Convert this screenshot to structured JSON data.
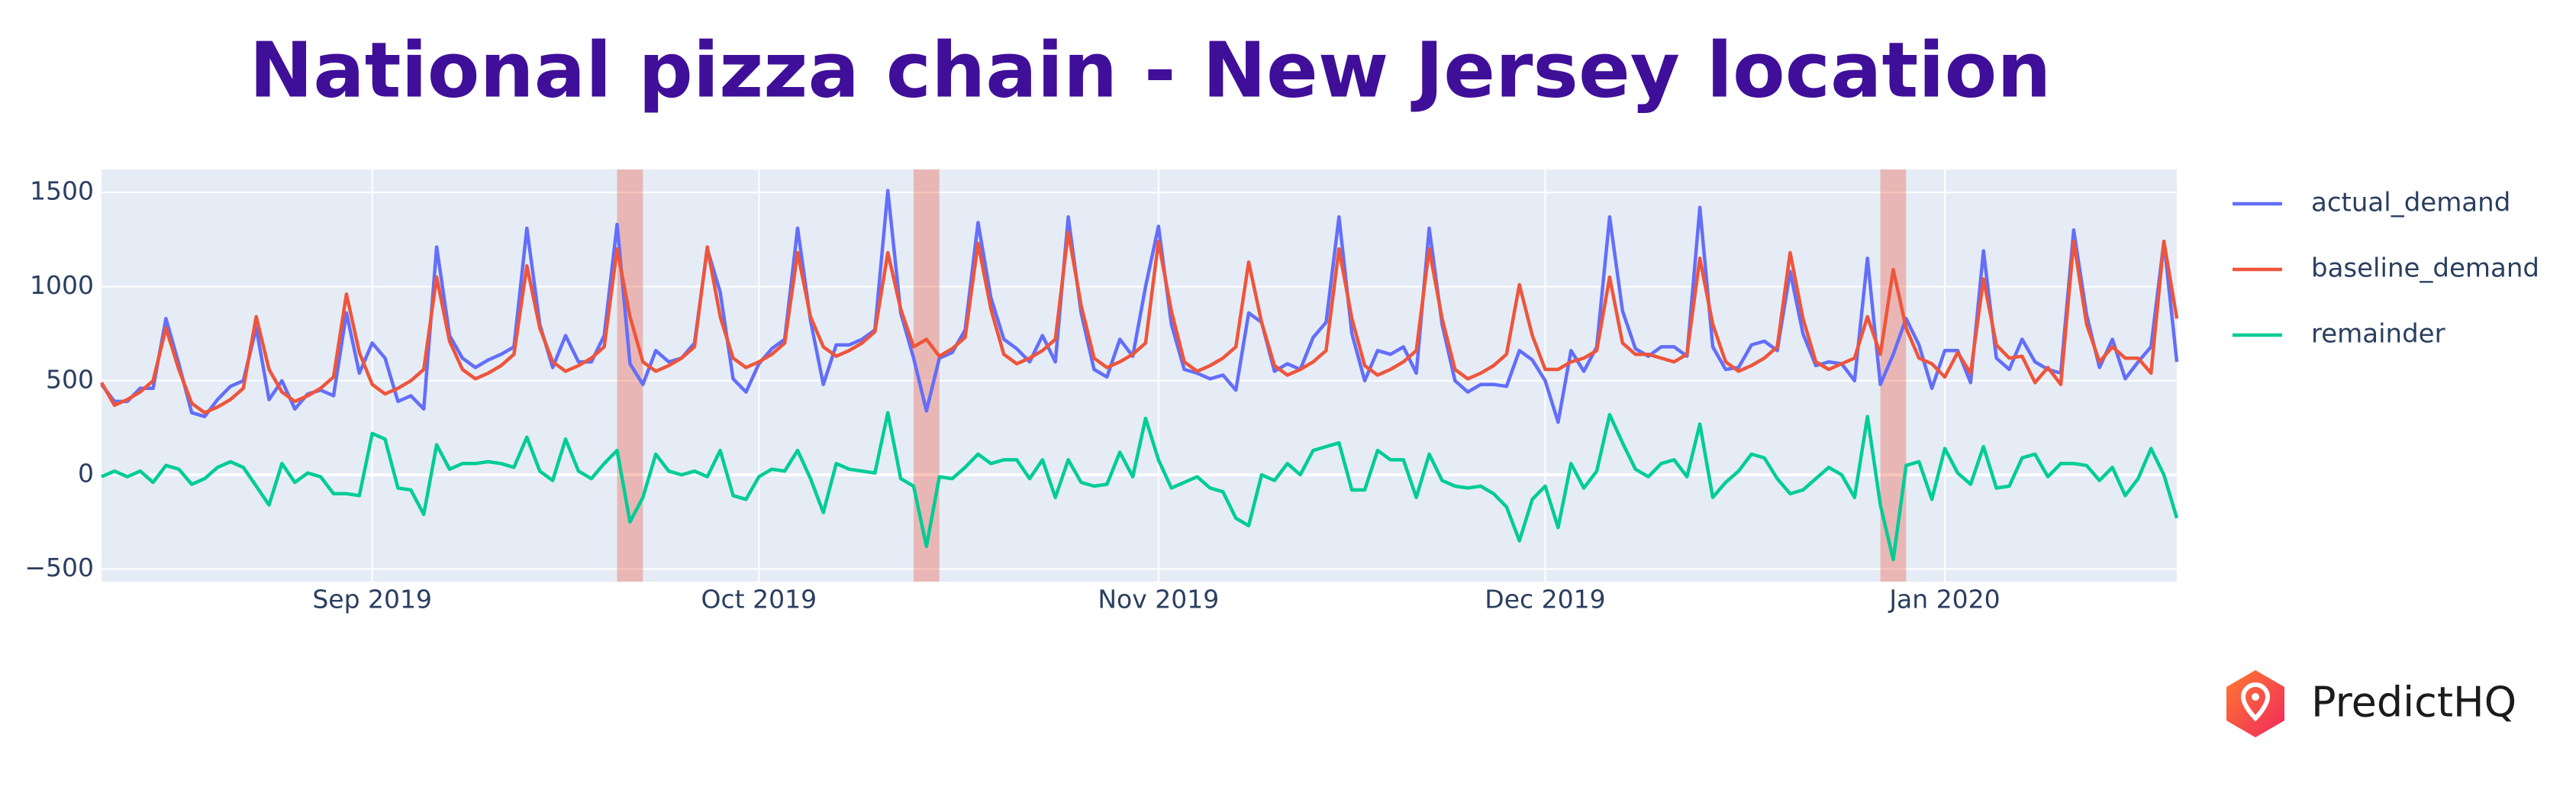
{
  "chart_data": {
    "type": "line",
    "title": "National pizza chain - New Jersey location",
    "logo": "PredictHQ",
    "x": [
      "2019-08-11",
      "2019-08-12",
      "2019-08-13",
      "2019-08-14",
      "2019-08-15",
      "2019-08-16",
      "2019-08-17",
      "2019-08-18",
      "2019-08-19",
      "2019-08-20",
      "2019-08-21",
      "2019-08-22",
      "2019-08-23",
      "2019-08-24",
      "2019-08-25",
      "2019-08-26",
      "2019-08-27",
      "2019-08-28",
      "2019-08-29",
      "2019-08-30",
      "2019-08-31",
      "2019-09-01",
      "2019-09-02",
      "2019-09-03",
      "2019-09-04",
      "2019-09-05",
      "2019-09-06",
      "2019-09-07",
      "2019-09-08",
      "2019-09-09",
      "2019-09-10",
      "2019-09-11",
      "2019-09-12",
      "2019-09-13",
      "2019-09-14",
      "2019-09-15",
      "2019-09-16",
      "2019-09-17",
      "2019-09-18",
      "2019-09-19",
      "2019-09-20",
      "2019-09-21",
      "2019-09-22",
      "2019-09-23",
      "2019-09-24",
      "2019-09-25",
      "2019-09-26",
      "2019-09-27",
      "2019-09-28",
      "2019-09-29",
      "2019-09-30",
      "2019-10-01",
      "2019-10-02",
      "2019-10-03",
      "2019-10-04",
      "2019-10-05",
      "2019-10-06",
      "2019-10-07",
      "2019-10-08",
      "2019-10-09",
      "2019-10-10",
      "2019-10-11",
      "2019-10-12",
      "2019-10-13",
      "2019-10-14",
      "2019-10-15",
      "2019-10-16",
      "2019-10-17",
      "2019-10-18",
      "2019-10-19",
      "2019-10-20",
      "2019-10-21",
      "2019-10-22",
      "2019-10-23",
      "2019-10-24",
      "2019-10-25",
      "2019-10-26",
      "2019-10-27",
      "2019-10-28",
      "2019-10-29",
      "2019-10-30",
      "2019-10-31",
      "2019-11-01",
      "2019-11-02",
      "2019-11-03",
      "2019-11-04",
      "2019-11-05",
      "2019-11-06",
      "2019-11-07",
      "2019-11-08",
      "2019-11-09",
      "2019-11-10",
      "2019-11-11",
      "2019-11-12",
      "2019-11-13",
      "2019-11-14",
      "2019-11-15",
      "2019-11-16",
      "2019-11-17",
      "2019-11-18",
      "2019-11-19",
      "2019-11-20",
      "2019-11-21",
      "2019-11-22",
      "2019-11-23",
      "2019-11-24",
      "2019-11-25",
      "2019-11-26",
      "2019-11-27",
      "2019-11-28",
      "2019-11-29",
      "2019-11-30",
      "2019-12-01",
      "2019-12-02",
      "2019-12-03",
      "2019-12-04",
      "2019-12-05",
      "2019-12-06",
      "2019-12-07",
      "2019-12-08",
      "2019-12-09",
      "2019-12-10",
      "2019-12-11",
      "2019-12-12",
      "2019-12-13",
      "2019-12-14",
      "2019-12-15",
      "2019-12-16",
      "2019-12-17",
      "2019-12-18",
      "2019-12-19",
      "2019-12-20",
      "2019-12-21",
      "2019-12-22",
      "2019-12-23",
      "2019-12-24",
      "2019-12-25",
      "2019-12-26",
      "2019-12-27",
      "2019-12-28",
      "2019-12-29",
      "2019-12-30",
      "2019-12-31",
      "2020-01-01",
      "2020-01-02",
      "2020-01-03",
      "2020-01-04",
      "2020-01-05",
      "2020-01-06",
      "2020-01-07",
      "2020-01-08",
      "2020-01-09",
      "2020-01-10",
      "2020-01-11",
      "2020-01-12",
      "2020-01-13",
      "2020-01-14",
      "2020-01-15",
      "2020-01-16",
      "2020-01-17",
      "2020-01-18",
      "2020-01-19"
    ],
    "series": [
      {
        "name": "actual_demand",
        "color": "#636efa",
        "values": [
          480,
          390,
          390,
          460,
          460,
          830,
          590,
          330,
          310,
          400,
          470,
          500,
          780,
          400,
          500,
          350,
          430,
          450,
          420,
          860,
          540,
          700,
          620,
          390,
          420,
          350,
          1210,
          740,
          620,
          570,
          610,
          640,
          680,
          1310,
          800,
          570,
          740,
          600,
          600,
          740,
          1330,
          590,
          480,
          660,
          600,
          620,
          700,
          1200,
          970,
          510,
          440,
          590,
          670,
          720,
          1310,
          820,
          480,
          690,
          690,
          720,
          770,
          1510,
          860,
          620,
          340,
          620,
          650,
          770,
          1340,
          940,
          720,
          670,
          600,
          740,
          600,
          1370,
          860,
          560,
          520,
          720,
          630,
          1000,
          1320,
          800,
          560,
          540,
          510,
          530,
          450,
          860,
          810,
          550,
          590,
          560,
          730,
          810,
          1370,
          750,
          500,
          660,
          640,
          680,
          540,
          1310,
          800,
          500,
          440,
          480,
          480,
          470,
          660,
          610,
          500,
          280,
          660,
          550,
          680,
          1370,
          870,
          670,
          630,
          680,
          680,
          630,
          1420,
          680,
          560,
          570,
          690,
          710,
          660,
          1080,
          750,
          580,
          600,
          590,
          500,
          1150,
          480,
          640,
          830,
          690,
          460,
          660,
          660,
          490,
          1190,
          620,
          560,
          720,
          600,
          560,
          540,
          1300,
          850,
          570,
          720,
          510,
          600,
          680,
          1240,
          600
        ]
      },
      {
        "name": "baseline_demand",
        "color": "#EF553B",
        "values": [
          490,
          370,
          400,
          440,
          500,
          780,
          560,
          380,
          330,
          360,
          400,
          460,
          840,
          560,
          440,
          390,
          420,
          460,
          520,
          960,
          650,
          480,
          430,
          460,
          500,
          560,
          1050,
          710,
          560,
          510,
          540,
          580,
          640,
          1110,
          780,
          600,
          550,
          580,
          620,
          680,
          1200,
          840,
          600,
          550,
          580,
          620,
          680,
          1210,
          840,
          620,
          570,
          600,
          640,
          700,
          1180,
          840,
          680,
          630,
          660,
          700,
          760,
          1180,
          880,
          680,
          720,
          630,
          670,
          730,
          1230,
          880,
          640,
          590,
          620,
          660,
          720,
          1290,
          900,
          620,
          570,
          600,
          640,
          700,
          1240,
          870,
          600,
          550,
          580,
          620,
          680,
          1130,
          810,
          580,
          530,
          560,
          600,
          660,
          1200,
          830,
          580,
          530,
          560,
          600,
          660,
          1200,
          830,
          560,
          510,
          540,
          580,
          640,
          1010,
          740,
          560,
          560,
          600,
          620,
          660,
          1050,
          700,
          640,
          640,
          620,
          600,
          640,
          1150,
          800,
          600,
          550,
          580,
          620,
          680,
          1180,
          830,
          600,
          560,
          590,
          620,
          840,
          640,
          1090,
          780,
          620,
          590,
          520,
          650,
          540,
          1040,
          690,
          620,
          630,
          490,
          570,
          480,
          1240,
          800,
          600,
          680,
          620,
          620,
          540,
          1240,
          830
        ]
      },
      {
        "name": "remainder",
        "color": "#00cc96",
        "values": [
          -10,
          20,
          -10,
          20,
          -40,
          50,
          30,
          -50,
          -20,
          40,
          70,
          40,
          -60,
          -160,
          60,
          -40,
          10,
          -10,
          -100,
          -100,
          -110,
          220,
          190,
          -70,
          -80,
          -210,
          160,
          30,
          60,
          60,
          70,
          60,
          40,
          200,
          20,
          -30,
          190,
          20,
          -20,
          60,
          130,
          -250,
          -120,
          110,
          20,
          0,
          20,
          -10,
          130,
          -110,
          -130,
          -10,
          30,
          20,
          130,
          -20,
          -200,
          60,
          30,
          20,
          10,
          330,
          -20,
          -60,
          -380,
          -10,
          -20,
          40,
          110,
          60,
          80,
          80,
          -20,
          80,
          -120,
          80,
          -40,
          -60,
          -50,
          120,
          -10,
          300,
          80,
          -70,
          -40,
          -10,
          -70,
          -90,
          -230,
          -270,
          0,
          -30,
          60,
          0,
          130,
          150,
          170,
          -80,
          -80,
          130,
          80,
          80,
          -120,
          110,
          -30,
          -60,
          -70,
          -60,
          -100,
          -170,
          -350,
          -130,
          -60,
          -280,
          60,
          -70,
          20,
          320,
          170,
          30,
          -10,
          60,
          80,
          -10,
          270,
          -120,
          -40,
          20,
          110,
          90,
          -20,
          -100,
          -80,
          -20,
          40,
          0,
          -120,
          310,
          -160,
          -450,
          50,
          70,
          -130,
          140,
          10,
          -50,
          150,
          -70,
          -60,
          90,
          110,
          -10,
          60,
          60,
          50,
          -30,
          40,
          -110,
          -20,
          140,
          0,
          -230
        ]
      }
    ],
    "highlights": [
      [
        "2019-09-20",
        "2019-09-22"
      ],
      [
        "2019-10-13",
        "2019-10-15"
      ],
      [
        "2019-12-27",
        "2019-12-29"
      ]
    ],
    "highlight_color": "#EF553B",
    "xlim": [
      "2019-08-11",
      "2020-01-19"
    ],
    "xticks": [
      {
        "value": "2019-09-01",
        "label": "Sep 2019"
      },
      {
        "value": "2019-10-01",
        "label": "Oct 2019"
      },
      {
        "value": "2019-11-01",
        "label": "Nov 2019"
      },
      {
        "value": "2019-12-01",
        "label": "Dec 2019"
      },
      {
        "value": "2020-01-01",
        "label": "Jan 2020"
      }
    ],
    "ylim": [
      -567,
      1622
    ],
    "yticks": [
      {
        "value": -500,
        "label": "−500"
      },
      0,
      500,
      1000,
      1500
    ],
    "grid": true,
    "legend": "right"
  }
}
